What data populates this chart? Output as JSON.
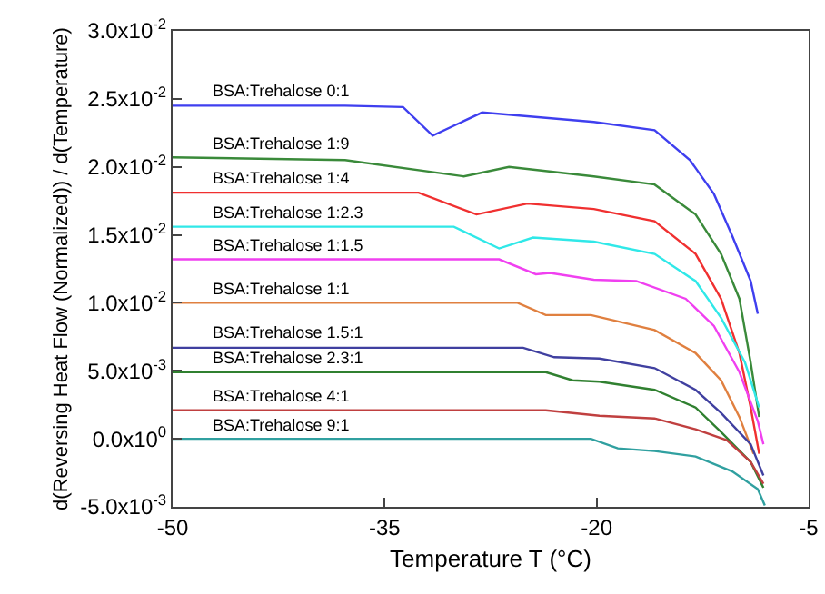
{
  "chart_data": {
    "type": "line",
    "xlabel": "Temperature T (°C)",
    "ylabel": "d(Reversing Heat Flow (Normalized)) / d(Temperature)",
    "xlim": [
      -50,
      -5
    ],
    "xticks": [
      -50,
      -35,
      -20,
      -5
    ],
    "ylim": [
      -0.005,
      0.03
    ],
    "yticks": [
      {
        "value": -0.005,
        "label": "-5.0x10$^{-3}$"
      },
      {
        "value": 0,
        "label": "0.0x10$^{0}$"
      },
      {
        "value": 0.005,
        "label": "5.0x10$^{-3}$"
      },
      {
        "value": 0.01,
        "label": "1.0x10$^{-2}$"
      },
      {
        "value": 0.015,
        "label": "1.5x10$^{-2}$"
      },
      {
        "value": 0.02,
        "label": "2.0x10$^{-2}$"
      },
      {
        "value": 0.025,
        "label": "2.5x10$^{-2}$"
      },
      {
        "value": 0.03,
        "label": "3.0x10$^{-2}$"
      }
    ],
    "grid": false,
    "legend": false,
    "marker": "none",
    "line_style": "solid",
    "series": [
      {
        "name": "BSA:Trehalose 0:1",
        "color": "#3f3fef",
        "x": [
          -50,
          -37.8,
          -33.7,
          -31.6,
          -28.1,
          -20.2,
          -15.9,
          -13.4,
          -11.7,
          -10.4,
          -9.1,
          -8.6
        ],
        "values": [
          0.0245,
          0.0245,
          0.0244,
          0.0223,
          0.024,
          0.0233,
          0.0227,
          0.0205,
          0.018,
          0.0149,
          0.0116,
          0.0092
        ]
      },
      {
        "name": "BSA:Trehalose 1:9",
        "color": "#3a8a3a",
        "x": [
          -50,
          -37.8,
          -29.4,
          -26.2,
          -20.2,
          -15.9,
          -13.0,
          -11.2,
          -9.9,
          -9.1,
          -8.5
        ],
        "values": [
          0.0207,
          0.0205,
          0.0193,
          0.02,
          0.0193,
          0.0187,
          0.0165,
          0.0136,
          0.0103,
          0.0056,
          0.0016
        ]
      },
      {
        "name": "BSA:Trehalose 1:4",
        "color": "#f03030",
        "x": [
          -50,
          -32.6,
          -28.5,
          -24.9,
          -20.2,
          -15.9,
          -13.0,
          -11.2,
          -9.9,
          -9.1,
          -8.5
        ],
        "values": [
          0.0181,
          0.0181,
          0.0165,
          0.0173,
          0.0169,
          0.016,
          0.0136,
          0.0103,
          0.0063,
          0.0023,
          -0.0011
        ]
      },
      {
        "name": "BSA:Trehalose 1:2.3",
        "color": "#30e8e8",
        "x": [
          -50,
          -30.1,
          -26.9,
          -24.5,
          -20.2,
          -15.9,
          -13.0,
          -11.2,
          -9.5,
          -8.5
        ],
        "values": [
          0.0156,
          0.0156,
          0.014,
          0.0148,
          0.0145,
          0.0136,
          0.0116,
          0.0089,
          0.0056,
          0.0023
        ]
      },
      {
        "name": "BSA:Trehalose 1:1.5",
        "color": "#f040f0",
        "x": [
          -50,
          -26.9,
          -24.3,
          -23.3,
          -20.2,
          -17.2,
          -13.7,
          -11.7,
          -9.9,
          -8.6,
          -8.2
        ],
        "values": [
          0.0132,
          0.0132,
          0.0121,
          0.0122,
          0.0117,
          0.0116,
          0.0103,
          0.0083,
          0.0049,
          0.0013,
          -0.0004
        ]
      },
      {
        "name": "BSA:Trehalose 1:1",
        "color": "#e08040",
        "x": [
          -50,
          -25.6,
          -23.6,
          -20.4,
          -15.9,
          -13.0,
          -11.2,
          -9.9,
          -8.9
        ],
        "values": [
          0.01,
          0.01,
          0.0091,
          0.0091,
          0.008,
          0.0063,
          0.0043,
          0.0016,
          -0.0011
        ]
      },
      {
        "name": "BSA:Trehalose 1.5:1",
        "color": "#4040a0",
        "x": [
          -50,
          -25.2,
          -23.0,
          -19.8,
          -15.9,
          -13.0,
          -11.2,
          -9.1,
          -8.2
        ],
        "values": [
          0.0067,
          0.0067,
          0.006,
          0.0059,
          0.0052,
          0.0036,
          0.0019,
          -0.0004,
          -0.0027
        ]
      },
      {
        "name": "BSA:Trehalose 2.3:1",
        "color": "#308030",
        "x": [
          -50,
          -23.6,
          -21.7,
          -19.8,
          -15.9,
          -13.0,
          -11.2,
          -9.1,
          -8.2
        ],
        "values": [
          0.0049,
          0.0049,
          0.0043,
          0.0042,
          0.0036,
          0.0023,
          0.0005,
          -0.0017,
          -0.0036
        ]
      },
      {
        "name": "BSA:Trehalose 4:1",
        "color": "#c04040",
        "x": [
          -50,
          -23.6,
          -19.8,
          -15.9,
          -13.0,
          -10.8,
          -9.1,
          -8.2
        ],
        "values": [
          0.0021,
          0.0021,
          0.0017,
          0.0015,
          0.0007,
          -0.0001,
          -0.0017,
          -0.0033
        ]
      },
      {
        "name": "BSA:Trehalose 9:1",
        "color": "#30a0a0",
        "x": [
          -50,
          -20.4,
          -18.5,
          -15.9,
          -13.0,
          -10.4,
          -8.6,
          -8.1
        ],
        "values": [
          0,
          0,
          -0.0007,
          -0.0009,
          -0.0013,
          -0.0024,
          -0.0037,
          -0.0049
        ]
      }
    ]
  }
}
